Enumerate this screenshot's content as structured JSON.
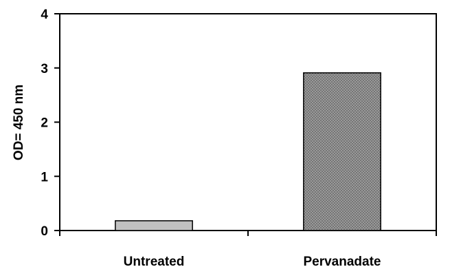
{
  "chart_data": {
    "type": "bar",
    "title": "",
    "xlabel": "",
    "ylabel": "OD= 450 nm",
    "categories": [
      "Untreated",
      "Pervanadate"
    ],
    "values": [
      0.18,
      2.91
    ],
    "ylim": [
      0,
      4
    ],
    "yticks": [
      "0",
      "1",
      "2",
      "3",
      "4"
    ],
    "bar_colors": [
      "#c0c0c0",
      "#8c8c8c"
    ],
    "grid": false,
    "legend": "none"
  }
}
